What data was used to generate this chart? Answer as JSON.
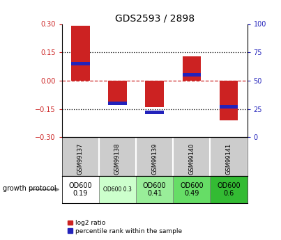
{
  "title": "GDS2593 / 2898",
  "samples": [
    "GSM99137",
    "GSM99138",
    "GSM99139",
    "GSM99140",
    "GSM99141"
  ],
  "log2_ratio": [
    0.29,
    -0.12,
    -0.14,
    0.13,
    -0.21
  ],
  "percentile_rank": [
    65,
    30,
    22,
    55,
    27
  ],
  "ylim_left": [
    -0.3,
    0.3
  ],
  "ylim_right": [
    0,
    100
  ],
  "left_ticks": [
    -0.3,
    -0.15,
    0,
    0.15,
    0.3
  ],
  "right_ticks": [
    0,
    25,
    50,
    75,
    100
  ],
  "bar_color_red": "#cc2222",
  "bar_color_blue": "#2222bb",
  "growth_protocol_labels": [
    "OD600\n0.19",
    "OD600 0.3",
    "OD600\n0.41",
    "OD600\n0.49",
    "OD600\n0.6"
  ],
  "growth_protocol_colors": [
    "#ffffff",
    "#ccffcc",
    "#99ee99",
    "#66dd66",
    "#33bb33"
  ],
  "legend_red": "log2 ratio",
  "legend_blue": "percentile rank within the sample",
  "zero_line_color": "#cc2222",
  "dotted_line_color": "#000000",
  "label_bg_color": "#cccccc"
}
